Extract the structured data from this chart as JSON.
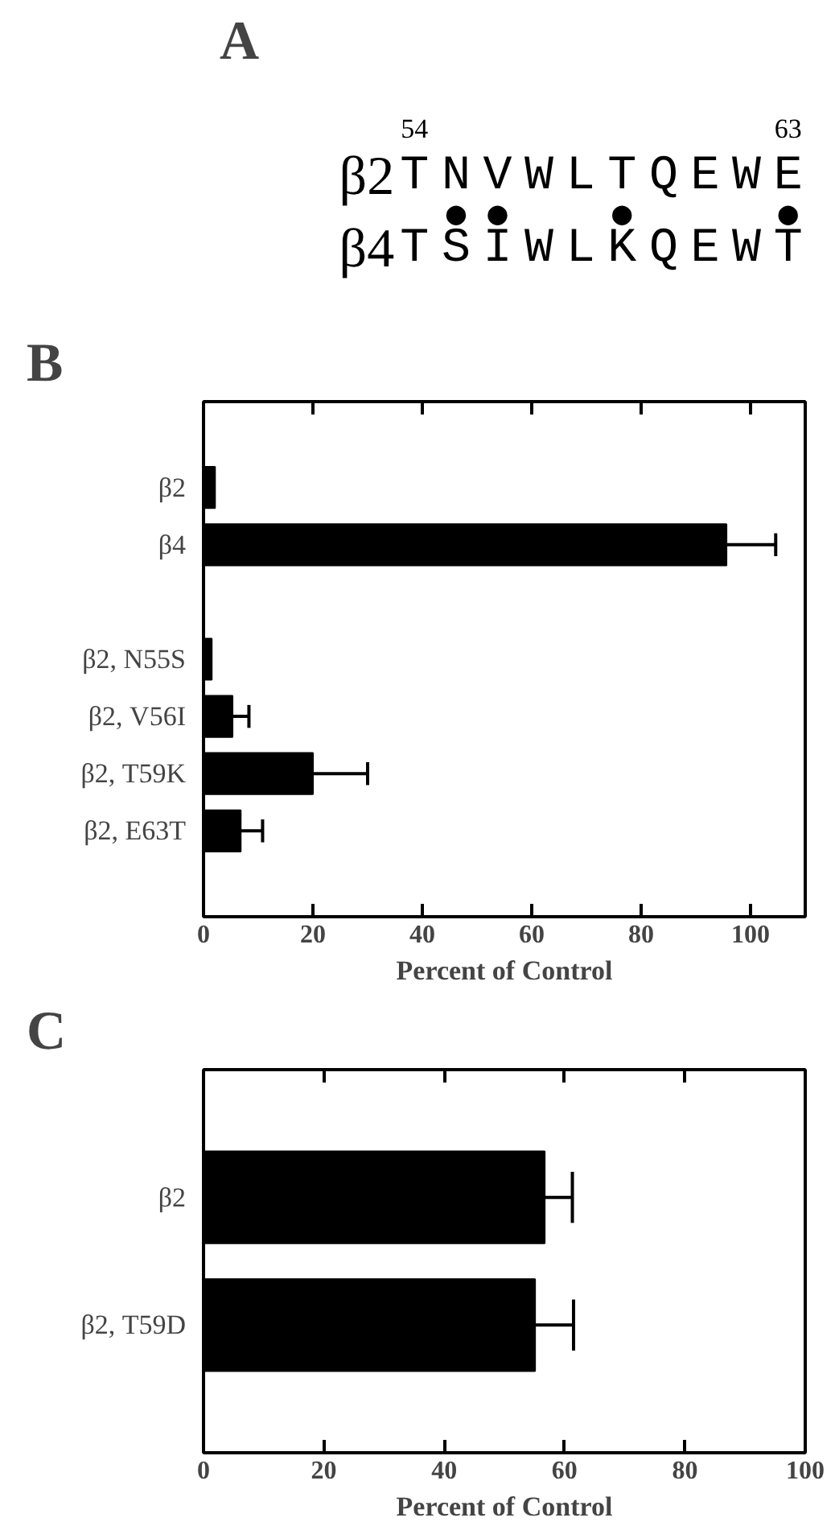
{
  "chart_data": [
    {
      "type": "other",
      "title": "A",
      "annotations": [
        "β2",
        "T N V W L T Q E W E",
        "β4",
        "T S I W L K Q E W T",
        "54",
        "63",
        " ● ●   ●    ●"
      ]
    },
    {
      "type": "bar",
      "title": "B",
      "orientation": "horizontal",
      "categories": [
        "β2",
        "β4",
        null,
        "β2, N55S",
        "β2, V56I",
        "β2, T59K",
        "β2, E63T"
      ],
      "values": [
        2.1,
        95.6,
        null,
        1.5,
        5.3,
        20,
        6.8
      ],
      "errors": [
        null,
        9,
        null,
        null,
        3,
        10,
        4
      ],
      "color": "#000000",
      "xlim": [
        0,
        110
      ],
      "xticks": [
        0,
        20,
        40,
        60,
        80,
        100
      ],
      "xlabel": "Percent of Control",
      "grid": false
    },
    {
      "type": "bar",
      "title": "C",
      "orientation": "horizontal",
      "categories": [
        "β2",
        "β2, T59D"
      ],
      "values": [
        56.7,
        55.1
      ],
      "errors": [
        4.6,
        6.4
      ],
      "color": "#000000",
      "xlim": [
        0,
        100
      ],
      "xticks": [
        0,
        20,
        40,
        60,
        80,
        100
      ],
      "xlabel": "Percent of Control",
      "grid": false
    }
  ]
}
